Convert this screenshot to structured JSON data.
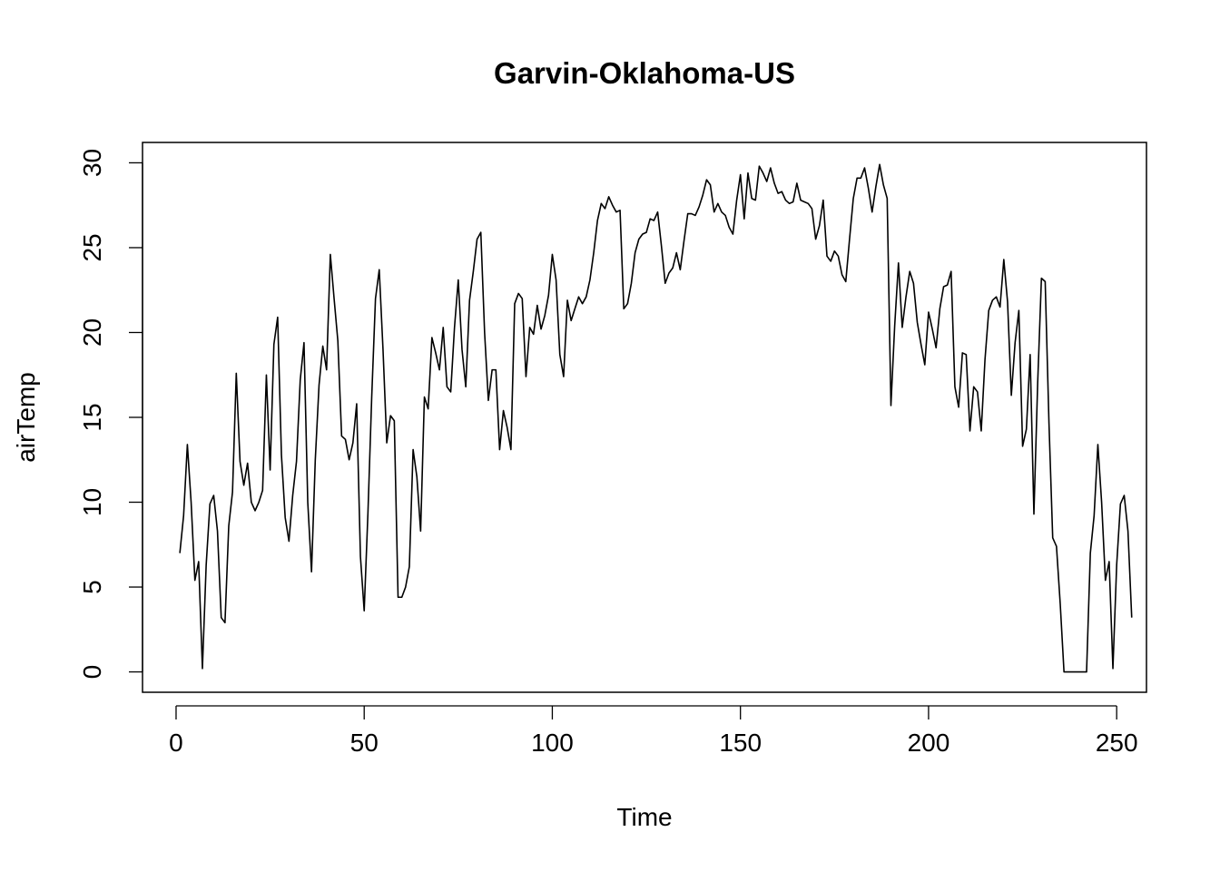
{
  "chart_data": {
    "type": "line",
    "title": "Garvin-Oklahoma-US",
    "xlabel": "Time",
    "ylabel": "airTemp",
    "xlim": [
      -8.92,
      257.92
    ],
    "ylim": [
      -1.2,
      31.2
    ],
    "xticks": [
      0,
      50,
      100,
      150,
      200,
      250
    ],
    "yticks": [
      0,
      5,
      10,
      15,
      20,
      25,
      30
    ],
    "xtick_labels": [
      "0",
      "50",
      "100",
      "150",
      "200",
      "250"
    ],
    "ytick_labels": [
      "0",
      "5",
      "10",
      "15",
      "20",
      "25",
      "30"
    ],
    "grid": false,
    "series": [
      {
        "values": [
          7.0,
          9.2,
          13.4,
          10.0,
          5.4,
          6.5,
          0.2,
          6.3,
          9.9,
          10.4,
          8.3,
          3.2,
          2.9,
          8.6,
          10.6,
          17.6,
          12.4,
          11.0,
          12.3,
          10.0,
          9.5,
          10.0,
          10.7,
          17.5,
          11.9,
          19.3,
          20.9,
          12.8,
          9.1,
          7.7,
          10.4,
          12.4,
          17.2,
          19.4,
          10.0,
          5.9,
          12.5,
          16.9,
          19.2,
          17.8,
          24.6,
          22.0,
          19.5,
          13.9,
          13.7,
          12.5,
          13.5,
          15.8,
          6.8,
          3.6,
          9.4,
          16.2,
          22.0,
          23.7,
          19.0,
          13.5,
          15.1,
          14.8,
          4.4,
          4.4,
          5.0,
          6.2,
          13.1,
          11.5,
          8.3,
          16.2,
          15.5,
          19.7,
          18.8,
          17.8,
          20.3,
          16.8,
          16.5,
          20.3,
          23.1,
          19.0,
          16.8,
          21.9,
          23.6,
          25.5,
          25.9,
          20.0,
          16.0,
          17.8,
          17.8,
          13.1,
          15.4,
          14.4,
          13.1,
          21.7,
          22.3,
          22.0,
          17.4,
          20.3,
          19.9,
          21.6,
          20.2,
          21.0,
          22.2,
          24.6,
          23.1,
          18.7,
          17.4,
          21.9,
          20.7,
          21.4,
          22.1,
          21.7,
          22.1,
          23.1,
          24.7,
          26.6,
          27.6,
          27.3,
          28.0,
          27.5,
          27.1,
          27.2,
          21.4,
          21.7,
          22.9,
          24.7,
          25.5,
          25.8,
          25.9,
          26.7,
          26.6,
          27.1,
          25.1,
          22.9,
          23.5,
          23.8,
          24.7,
          23.7,
          25.4,
          27.0,
          27.0,
          26.9,
          27.4,
          28.1,
          29.0,
          28.7,
          27.1,
          27.6,
          27.1,
          26.9,
          26.2,
          25.8,
          27.8,
          29.3,
          26.7,
          29.4,
          27.9,
          27.8,
          29.8,
          29.4,
          28.9,
          29.7,
          28.8,
          28.2,
          28.3,
          27.8,
          27.6,
          27.7,
          28.8,
          27.8,
          27.7,
          27.6,
          27.3,
          25.5,
          26.3,
          27.8,
          24.5,
          24.2,
          24.8,
          24.5,
          23.4,
          23.0,
          25.5,
          27.9,
          29.1,
          29.1,
          29.7,
          28.5,
          27.1,
          28.6,
          29.9,
          28.7,
          27.9,
          15.7,
          20.4,
          24.1,
          20.3,
          22.1,
          23.6,
          22.9,
          20.6,
          19.3,
          18.1,
          21.2,
          20.2,
          19.1,
          21.4,
          22.7,
          22.8,
          23.6,
          16.8,
          15.6,
          18.8,
          18.7,
          14.2,
          16.8,
          16.5,
          14.2,
          18.4,
          21.3,
          21.9,
          22.1,
          21.5,
          24.3,
          21.8,
          16.3,
          19.4,
          21.3,
          13.3,
          14.3,
          18.7,
          9.3,
          17.0,
          23.2,
          23.0,
          14.7,
          7.9,
          7.4,
          4.0,
          0.0,
          0.0,
          0.0,
          0.0,
          0.0,
          0.0,
          0.0,
          7.0,
          9.2,
          13.4,
          10.0,
          5.4,
          6.5,
          0.2,
          6.3,
          9.9,
          10.4,
          8.3,
          3.2
        ]
      }
    ]
  }
}
